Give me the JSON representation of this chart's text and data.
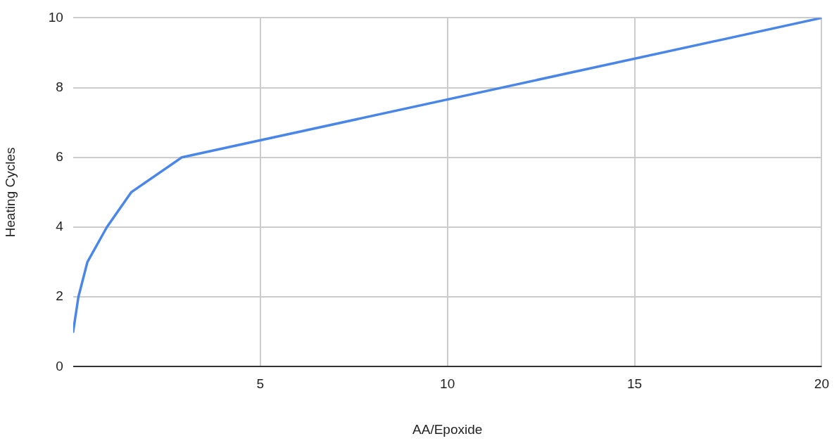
{
  "chart_data": {
    "type": "line",
    "xlabel": "AA/Epoxide",
    "ylabel": "Heating Cycles",
    "x": [
      0,
      0.14,
      0.38,
      0.9,
      1.55,
      2.9,
      20
    ],
    "series": [
      {
        "color": "#4a86e8",
        "values": [
          1,
          2,
          3,
          4,
          5,
          6,
          10
        ]
      }
    ],
    "xlim": [
      0,
      20
    ],
    "xticks": [
      5,
      10,
      15,
      20
    ],
    "ylim": [
      0,
      10
    ],
    "yticks": [
      0,
      2,
      4,
      6,
      8,
      10
    ],
    "grid": true,
    "legend": false,
    "marker": "none",
    "line_style": "solid"
  }
}
